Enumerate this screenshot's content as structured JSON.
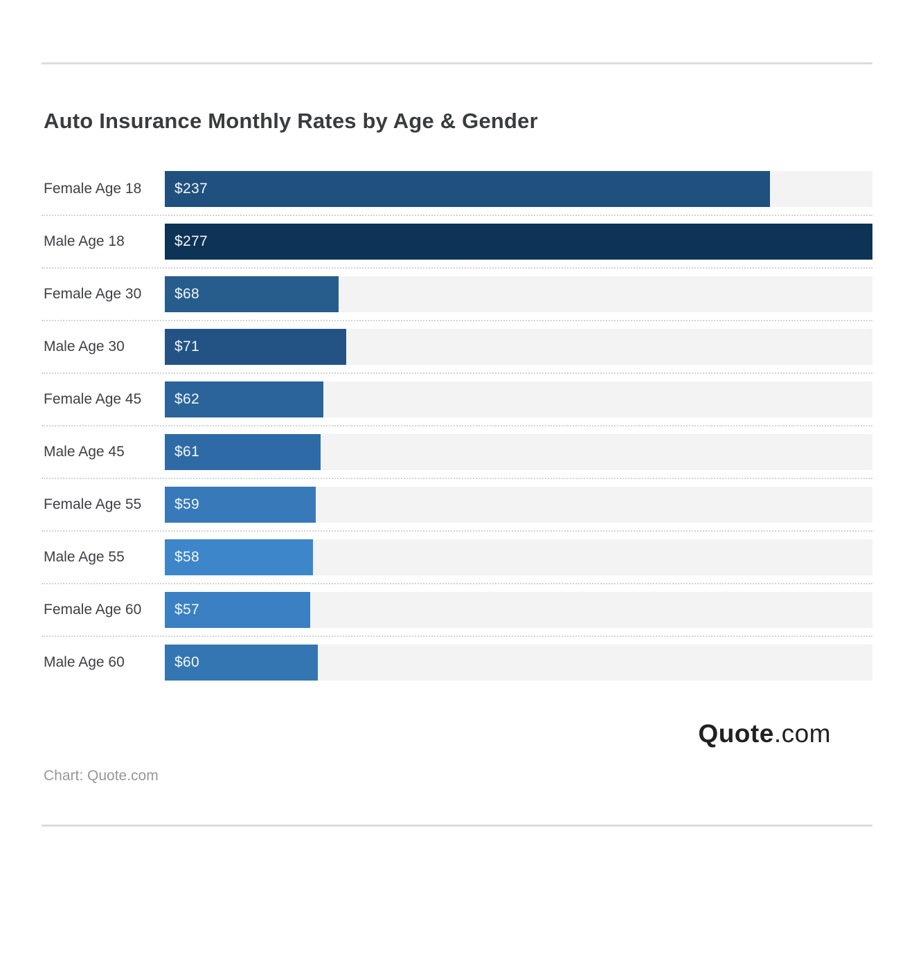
{
  "header": {
    "title": "Auto Insurance Monthly Rates by Age & Gender"
  },
  "chart_data": {
    "type": "bar",
    "orientation": "horizontal",
    "title": "Auto Insurance Monthly Rates by Age & Gender",
    "xlabel": "",
    "ylabel": "",
    "max_value": 277,
    "grid": false,
    "legend": false,
    "track_color": "#f2f3f2",
    "categories": [
      "Female Age 18",
      "Male Age 18",
      "Female Age 30",
      "Male Age 30",
      "Female Age 45",
      "Male Age 45",
      "Female Age 55",
      "Male Age 55",
      "Female Age 60",
      "Male Age 60"
    ],
    "values": [
      237,
      277,
      68,
      71,
      62,
      61,
      59,
      58,
      57,
      60
    ],
    "value_labels": [
      "$237",
      "$277",
      "$68",
      "$71",
      "$62",
      "$61",
      "$59",
      "$58",
      "$57",
      "$60"
    ],
    "bar_colors": [
      "#20507e",
      "#0d3356",
      "#265d8c",
      "#225384",
      "#2a649b",
      "#2e6ba6",
      "#3879ba",
      "#3d86ca",
      "#3a80c2",
      "#3476b2"
    ]
  },
  "branding": {
    "logo_bold": "Quote",
    "logo_light": ".com"
  },
  "footer": {
    "attribution": "Chart: Quote.com"
  }
}
